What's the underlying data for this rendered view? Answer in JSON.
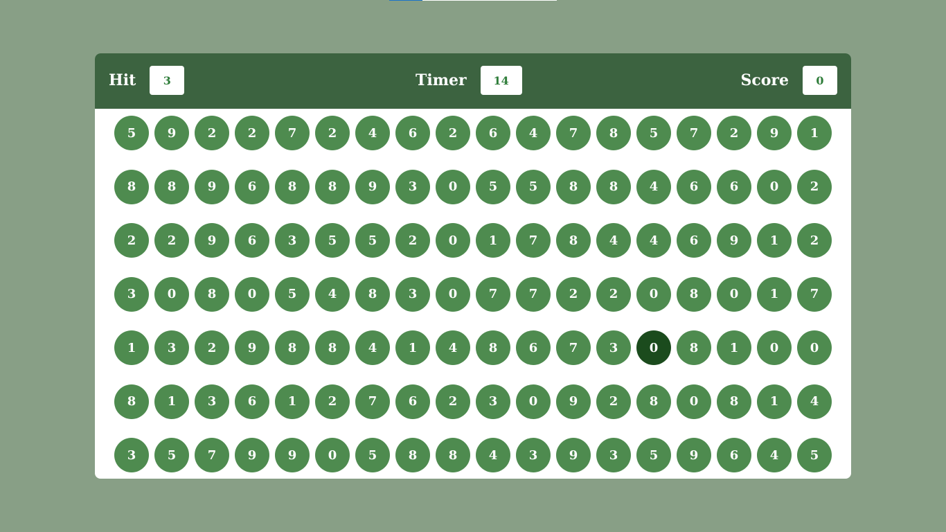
{
  "progress": {
    "fraction": 0.2
  },
  "header": {
    "hit": {
      "label": "Hit",
      "value": "3"
    },
    "timer": {
      "label": "Timer",
      "value": "14"
    },
    "score": {
      "label": "Score",
      "value": "0"
    }
  },
  "board": {
    "active_cell": {
      "row": 4,
      "col": 13
    },
    "rows": [
      [
        "5",
        "9",
        "2",
        "2",
        "7",
        "2",
        "4",
        "6",
        "2",
        "6",
        "4",
        "7",
        "8",
        "5",
        "7",
        "2",
        "9",
        "1"
      ],
      [
        "8",
        "8",
        "9",
        "6",
        "8",
        "8",
        "9",
        "3",
        "0",
        "5",
        "5",
        "8",
        "8",
        "4",
        "6",
        "6",
        "0",
        "2"
      ],
      [
        "2",
        "2",
        "9",
        "6",
        "3",
        "5",
        "5",
        "2",
        "0",
        "1",
        "7",
        "8",
        "4",
        "4",
        "6",
        "9",
        "1",
        "2"
      ],
      [
        "3",
        "0",
        "8",
        "0",
        "5",
        "4",
        "8",
        "3",
        "0",
        "7",
        "7",
        "2",
        "2",
        "0",
        "8",
        "0",
        "1",
        "7"
      ],
      [
        "1",
        "3",
        "2",
        "9",
        "8",
        "8",
        "4",
        "1",
        "4",
        "8",
        "6",
        "7",
        "3",
        "0",
        "8",
        "1",
        "0",
        "0"
      ],
      [
        "8",
        "1",
        "3",
        "6",
        "1",
        "2",
        "7",
        "6",
        "2",
        "3",
        "0",
        "9",
        "2",
        "8",
        "0",
        "8",
        "1",
        "4"
      ],
      [
        "3",
        "5",
        "7",
        "9",
        "9",
        "0",
        "5",
        "8",
        "8",
        "4",
        "3",
        "9",
        "3",
        "5",
        "9",
        "6",
        "4",
        "5"
      ]
    ]
  },
  "colors": {
    "background": "#889f86",
    "header": "#3c6340",
    "bubble": "#4e8b4f",
    "bubble_active": "#1b4b1d"
  }
}
